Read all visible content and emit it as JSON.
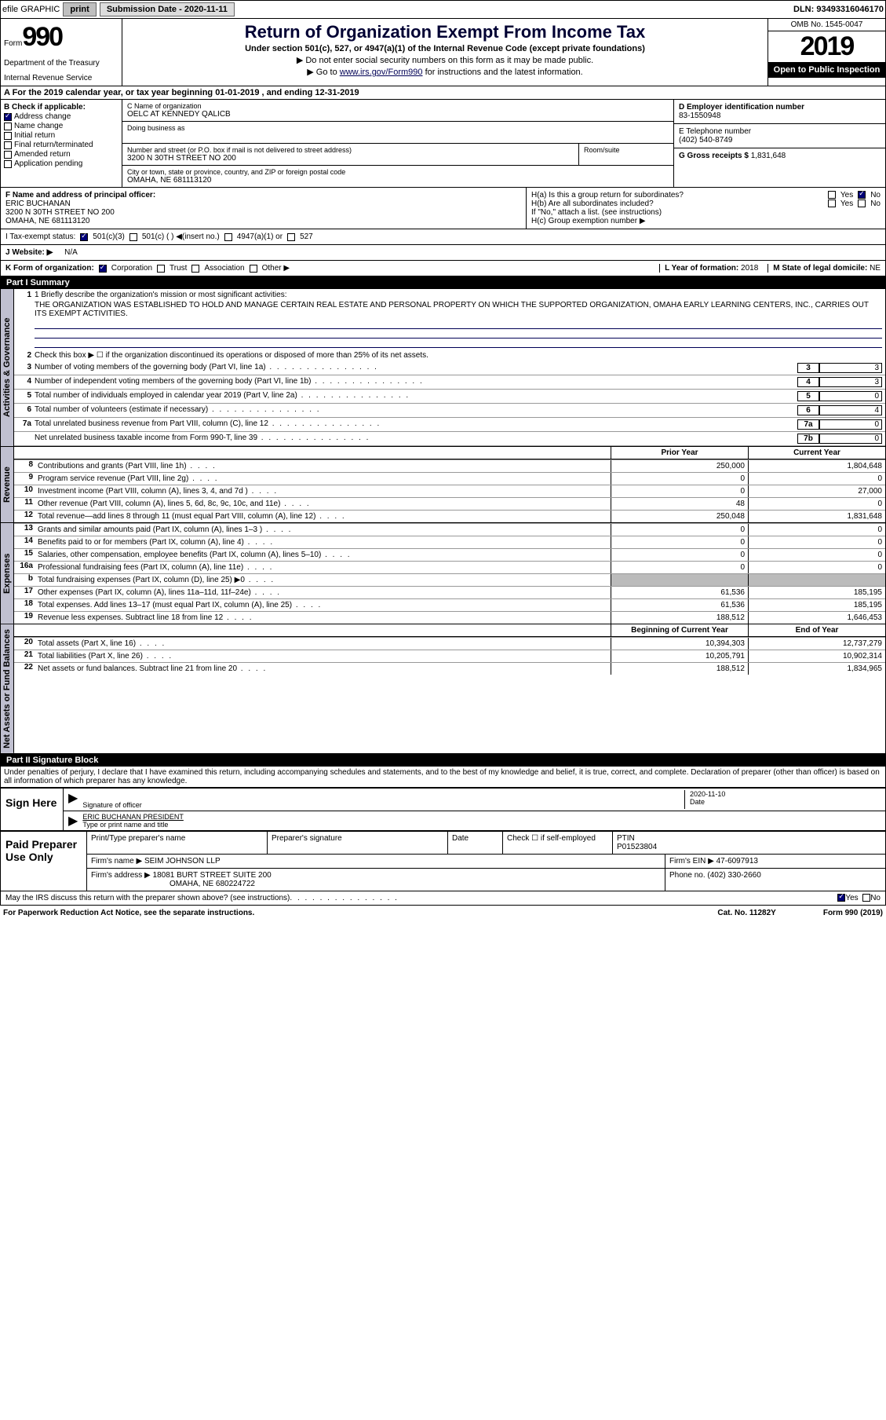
{
  "topbar": {
    "efile_label": "efile GRAPHIC",
    "print_btn": "print",
    "sub_date_label": "Submission Date",
    "sub_date": "2020-11-11",
    "dln_label": "DLN:",
    "dln": "93493316046170"
  },
  "header": {
    "form_label": "Form",
    "form_number": "990",
    "dept": "Department of the Treasury",
    "irs": "Internal Revenue Service",
    "title": "Return of Organization Exempt From Income Tax",
    "subtitle": "Under section 501(c), 527, or 4947(a)(1) of the Internal Revenue Code (except private foundations)",
    "note1": "▶ Do not enter social security numbers on this form as it may be made public.",
    "note2_pre": "▶ Go to ",
    "note2_link": "www.irs.gov/Form990",
    "note2_post": " for instructions and the latest information.",
    "omb": "OMB No. 1545-0047",
    "year": "2019",
    "public": "Open to Public Inspection"
  },
  "section_a": "A For the 2019 calendar year, or tax year beginning 01-01-2019    , and ending 12-31-2019",
  "col_b": {
    "label": "B Check if applicable:",
    "items": [
      "Address change",
      "Name change",
      "Initial return",
      "Final return/terminated",
      "Amended return",
      "Application pending"
    ],
    "checked_idx": 0
  },
  "org": {
    "name_label": "C Name of organization",
    "name": "OELC AT KENNEDY QALICB",
    "dba_label": "Doing business as",
    "addr_label": "Number and street (or P.O. box if mail is not delivered to street address)",
    "room_label": "Room/suite",
    "addr": "3200 N 30TH STREET NO 200",
    "city_label": "City or town, state or province, country, and ZIP or foreign postal code",
    "city": "OMAHA, NE  681113120"
  },
  "right": {
    "ein_label": "D Employer identification number",
    "ein": "83-1550948",
    "phone_label": "E Telephone number",
    "phone": "(402) 540-8749",
    "gross_label": "G Gross receipts $",
    "gross": "1,831,648"
  },
  "officer": {
    "label": "F  Name and address of principal officer:",
    "name": "ERIC BUCHANAN",
    "addr1": "3200 N 30TH STREET NO 200",
    "addr2": "OMAHA, NE  681113120"
  },
  "ha": {
    "a_label": "H(a)  Is this a group return for subordinates?",
    "b_label": "H(b)  Are all subordinates included?",
    "b_note": "If \"No,\" attach a list. (see instructions)",
    "c_label": "H(c)  Group exemption number ▶",
    "yes": "Yes",
    "no": "No"
  },
  "tax_status": {
    "label": "I  Tax-exempt status:",
    "opt1": "501(c)(3)",
    "opt2": "501(c) (  ) ◀(insert no.)",
    "opt3": "4947(a)(1) or",
    "opt4": "527"
  },
  "website": {
    "label": "J Website: ▶",
    "val": "N/A"
  },
  "k_line": {
    "label": "K Form of organization:",
    "opts": [
      "Corporation",
      "Trust",
      "Association",
      "Other ▶"
    ]
  },
  "l_line": {
    "label": "L Year of formation:",
    "val": "2018"
  },
  "m_line": {
    "label": "M State of legal domicile:",
    "val": "NE"
  },
  "part1": {
    "header": "Part I      Summary",
    "vtab1": "Activities & Governance",
    "vtab2": "Revenue",
    "vtab3": "Expenses",
    "vtab4": "Net Assets or Fund Balances",
    "line1_label": "1  Briefly describe the organization's mission or most significant activities:",
    "mission": "THE ORGANIZATION WAS ESTABLISHED TO HOLD AND MANAGE CERTAIN REAL ESTATE AND PERSONAL PROPERTY ON WHICH THE SUPPORTED ORGANIZATION, OMAHA EARLY LEARNING CENTERS, INC., CARRIES OUT ITS EXEMPT ACTIVITIES.",
    "line2": "Check this box ▶ ☐  if the organization discontinued its operations or disposed of more than 25% of its net assets.",
    "gov_rows": [
      {
        "n": "3",
        "t": "Number of voting members of the governing body (Part VI, line 1a)",
        "box": "3",
        "v": "3"
      },
      {
        "n": "4",
        "t": "Number of independent voting members of the governing body (Part VI, line 1b)",
        "box": "4",
        "v": "3"
      },
      {
        "n": "5",
        "t": "Total number of individuals employed in calendar year 2019 (Part V, line 2a)",
        "box": "5",
        "v": "0"
      },
      {
        "n": "6",
        "t": "Total number of volunteers (estimate if necessary)",
        "box": "6",
        "v": "4"
      },
      {
        "n": "7a",
        "t": "Total unrelated business revenue from Part VIII, column (C), line 12",
        "box": "7a",
        "v": "0"
      },
      {
        "n": "",
        "t": "Net unrelated business taxable income from Form 990-T, line 39",
        "box": "7b",
        "v": "0"
      }
    ],
    "col_prior": "Prior Year",
    "col_current": "Current Year",
    "col_begin": "Beginning of Current Year",
    "col_end": "End of Year",
    "rev_rows": [
      {
        "n": "8",
        "t": "Contributions and grants (Part VIII, line 1h)",
        "p": "250,000",
        "c": "1,804,648"
      },
      {
        "n": "9",
        "t": "Program service revenue (Part VIII, line 2g)",
        "p": "0",
        "c": "0"
      },
      {
        "n": "10",
        "t": "Investment income (Part VIII, column (A), lines 3, 4, and 7d )",
        "p": "0",
        "c": "27,000"
      },
      {
        "n": "11",
        "t": "Other revenue (Part VIII, column (A), lines 5, 6d, 8c, 9c, 10c, and 11e)",
        "p": "48",
        "c": "0"
      },
      {
        "n": "12",
        "t": "Total revenue—add lines 8 through 11 (must equal Part VIII, column (A), line 12)",
        "p": "250,048",
        "c": "1,831,648"
      }
    ],
    "exp_rows": [
      {
        "n": "13",
        "t": "Grants and similar amounts paid (Part IX, column (A), lines 1–3 )",
        "p": "0",
        "c": "0"
      },
      {
        "n": "14",
        "t": "Benefits paid to or for members (Part IX, column (A), line 4)",
        "p": "0",
        "c": "0"
      },
      {
        "n": "15",
        "t": "Salaries, other compensation, employee benefits (Part IX, column (A), lines 5–10)",
        "p": "0",
        "c": "0"
      },
      {
        "n": "16a",
        "t": "Professional fundraising fees (Part IX, column (A), line 11e)",
        "p": "0",
        "c": "0"
      },
      {
        "n": "b",
        "t": "Total fundraising expenses (Part IX, column (D), line 25) ▶0",
        "p": "shade",
        "c": "shade"
      },
      {
        "n": "17",
        "t": "Other expenses (Part IX, column (A), lines 11a–11d, 11f–24e)",
        "p": "61,536",
        "c": "185,195"
      },
      {
        "n": "18",
        "t": "Total expenses. Add lines 13–17 (must equal Part IX, column (A), line 25)",
        "p": "61,536",
        "c": "185,195"
      },
      {
        "n": "19",
        "t": "Revenue less expenses. Subtract line 18 from line 12",
        "p": "188,512",
        "c": "1,646,453"
      }
    ],
    "net_rows": [
      {
        "n": "20",
        "t": "Total assets (Part X, line 16)",
        "p": "10,394,303",
        "c": "12,737,279"
      },
      {
        "n": "21",
        "t": "Total liabilities (Part X, line 26)",
        "p": "10,205,791",
        "c": "10,902,314"
      },
      {
        "n": "22",
        "t": "Net assets or fund balances. Subtract line 21 from line 20",
        "p": "188,512",
        "c": "1,834,965"
      }
    ]
  },
  "part2": {
    "header": "Part II     Signature Block",
    "penalties": "Under penalties of perjury, I declare that I have examined this return, including accompanying schedules and statements, and to the best of my knowledge and belief, it is true, correct, and complete. Declaration of preparer (other than officer) is based on all information of which preparer has any knowledge.",
    "sign_here": "Sign Here",
    "sig_officer_label": "Signature of officer",
    "sig_date": "2020-11-10",
    "date_label": "Date",
    "officer_name": "ERIC BUCHANAN  PRESIDENT",
    "type_label": "Type or print name and title",
    "paid": "Paid Preparer Use Only",
    "prep_name_label": "Print/Type preparer's name",
    "prep_sig_label": "Preparer's signature",
    "prep_date_label": "Date",
    "self_emp": "Check ☐ if self-employed",
    "ptin_label": "PTIN",
    "ptin": "P01523804",
    "firm_name_label": "Firm's name    ▶",
    "firm_name": "SEIM JOHNSON LLP",
    "firm_ein_label": "Firm's EIN ▶",
    "firm_ein": "47-6097913",
    "firm_addr_label": "Firm's address ▶",
    "firm_addr1": "18081 BURT STREET SUITE 200",
    "firm_addr2": "OMAHA, NE  680224722",
    "firm_phone_label": "Phone no.",
    "firm_phone": "(402) 330-2660",
    "discuss": "May the IRS discuss this return with the preparer shown above? (see instructions)"
  },
  "footer": {
    "paperwork": "For Paperwork Reduction Act Notice, see the separate instructions.",
    "cat": "Cat. No. 11282Y",
    "form": "Form 990 (2019)"
  }
}
